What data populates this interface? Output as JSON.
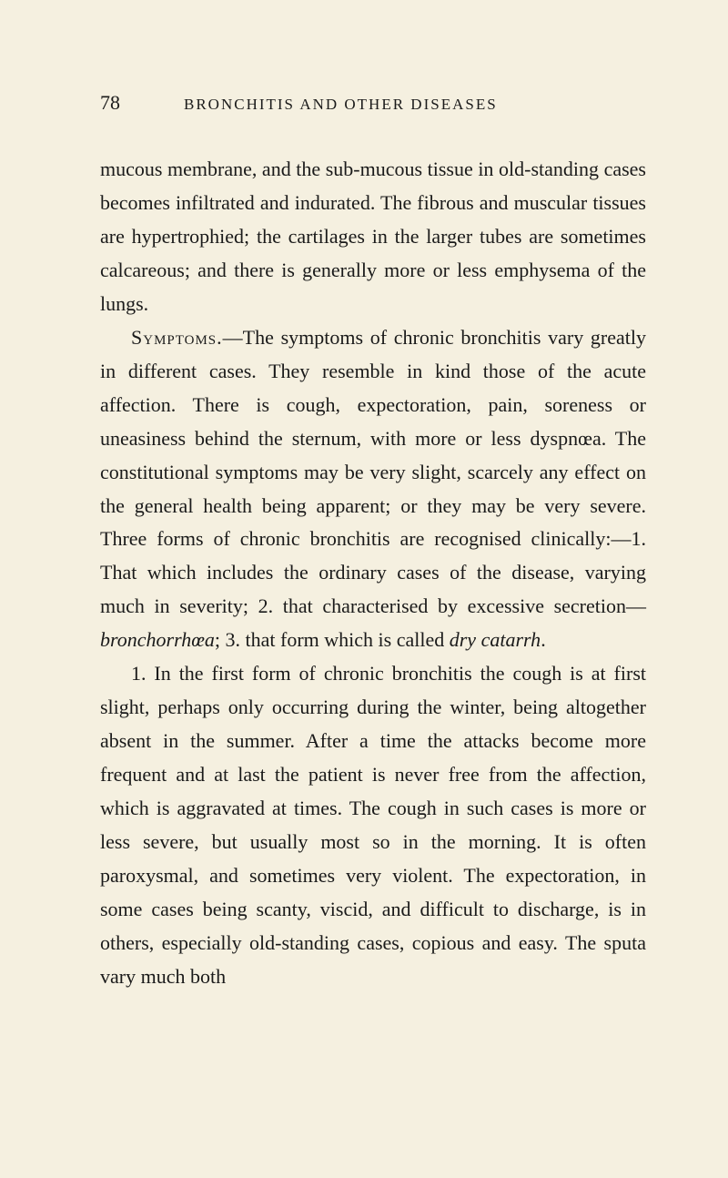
{
  "page_number": "78",
  "running_title": "BRONCHITIS AND OTHER DISEASES",
  "paragraphs": {
    "p1": "mucous membrane, and the sub-mucous tissue in old-standing cases becomes infiltrated and indurated. The fibrous and muscular tissues are hypertrophied; the cartilages in the larger tubes are sometimes calcareous; and there is generally more or less emphysema of the lungs.",
    "p2_lead": "Symptoms.",
    "p2_rest": "—The symptoms of chronic bronchitis vary greatly in different cases. They resemble in kind those of the acute affection. There is cough, expectoration, pain, soreness or uneasiness behind the sternum, with more or less dyspnœa. The constitutional symptoms may be very slight, scarcely any effect on the general health being apparent; or they may be very severe. Three forms of chronic bronchitis are recognised clinically:—1. That which includes the ordinary cases of the disease, varying much in severity; 2. that characterised by excessive secretion—",
    "p2_italic1": "bronchorrhœa",
    "p2_mid": "; 3. that form which is called ",
    "p2_italic2": "dry catarrh",
    "p2_end": ".",
    "p3": "1. In the first form of chronic bronchitis the cough is at first slight, perhaps only occurring during the winter, being altogether absent in the summer. After a time the attacks become more frequent and at last the patient is never free from the affection, which is aggravated at times. The cough in such cases is more or less severe, but usually most so in the morning. It is often paroxysmal, and sometimes very violent. The expectoration, in some cases being scanty, viscid, and difficult to discharge, is in others, especially old-standing cases, copious and easy. The sputa vary much both"
  },
  "colors": {
    "background": "#f5f0e0",
    "text": "#1a1a1a"
  },
  "typography": {
    "body_fontsize": 22,
    "header_fontsize": 17,
    "page_number_fontsize": 22,
    "line_height": 1.68,
    "font_family": "Georgia, Times New Roman, serif"
  }
}
